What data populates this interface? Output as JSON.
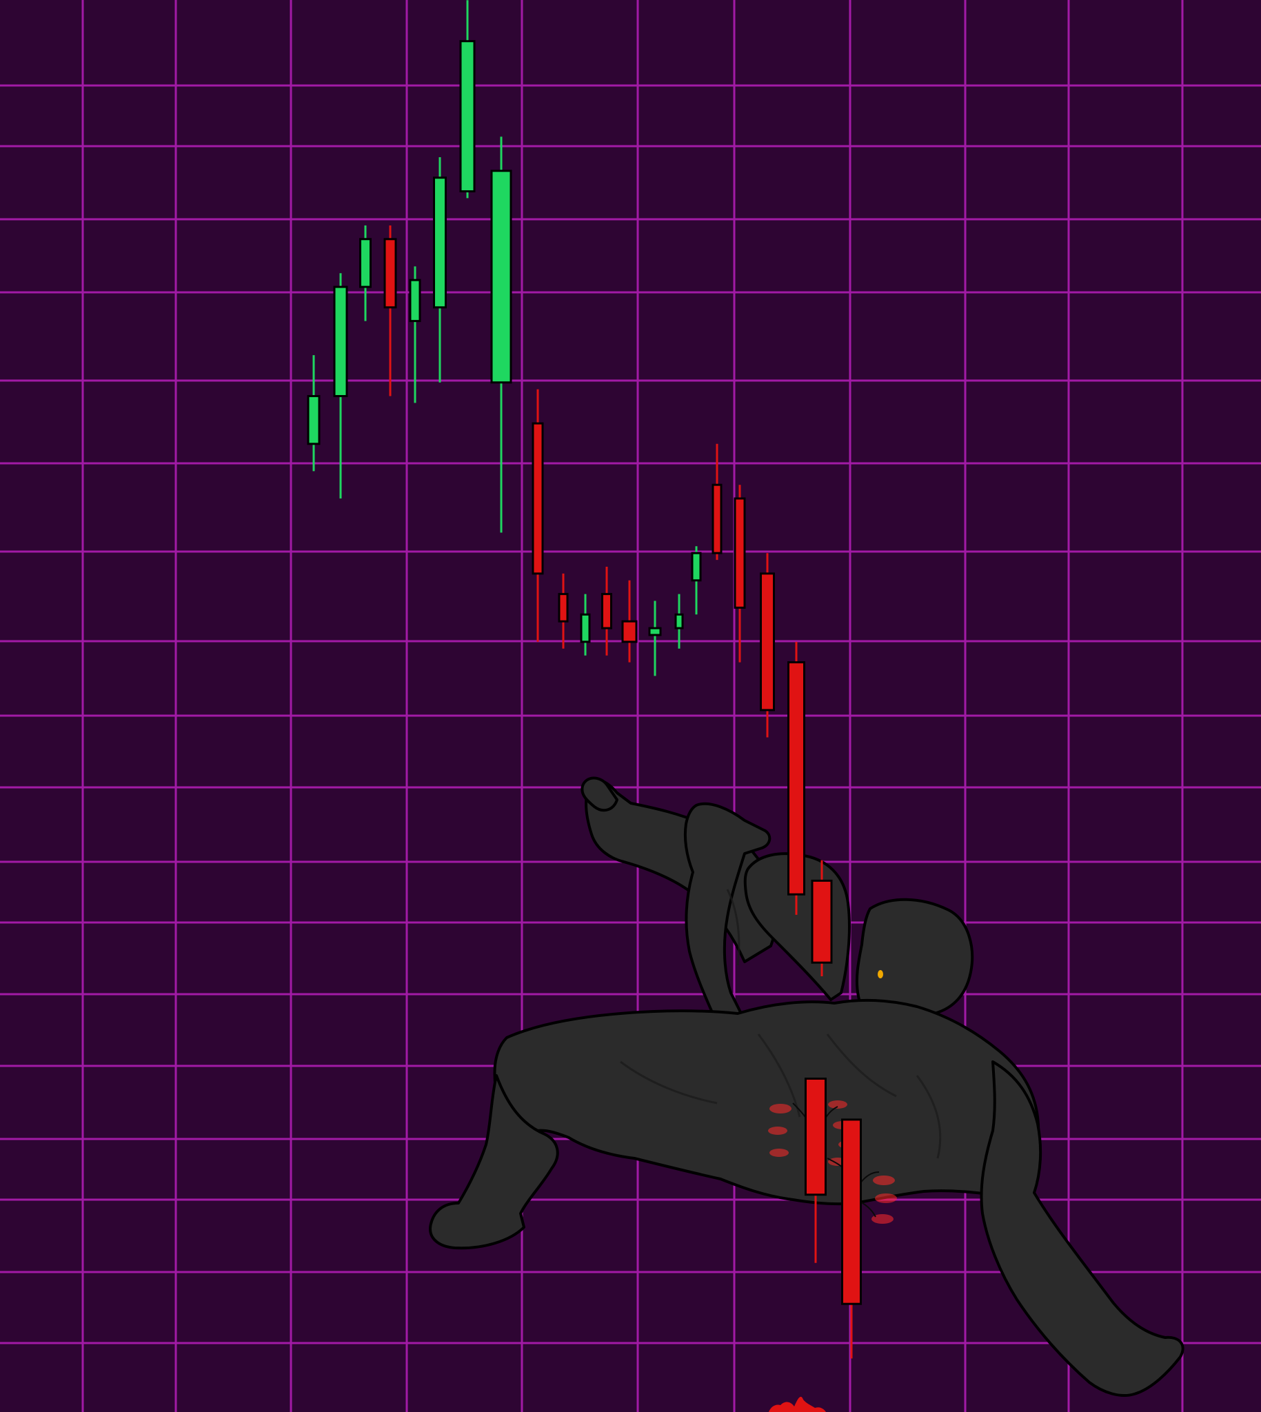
{
  "colors": {
    "background": "#2e0533",
    "grid": "#a21aa6",
    "bullish": "#1fd760",
    "bearish": "#e01313",
    "figure": "#2b2b2b",
    "figure_outline": "#000000",
    "earring": "#f0a800"
  },
  "chart_data": {
    "type": "candlestick",
    "title": "",
    "xlabel": "",
    "ylabel": "",
    "grid": true,
    "legend": "none",
    "tick_labels": "none",
    "candles": [
      {
        "open": 78,
        "close": 85,
        "high": 91,
        "low": 74
      },
      {
        "open": 85,
        "close": 101,
        "high": 103,
        "low": 70
      },
      {
        "open": 101,
        "close": 108,
        "high": 110,
        "low": 96
      },
      {
        "open": 108,
        "close": 98,
        "high": 110,
        "low": 85
      },
      {
        "open": 96,
        "close": 102,
        "high": 104,
        "low": 84
      },
      {
        "open": 98,
        "close": 117,
        "high": 120,
        "low": 87
      },
      {
        "open": 115,
        "close": 137,
        "high": 143,
        "low": 114
      },
      {
        "open": 87,
        "close": 118,
        "high": 123,
        "low": 65
      },
      {
        "open": 81,
        "close": 59,
        "high": 86,
        "low": 49
      },
      {
        "open": 56,
        "close": 52,
        "high": 59,
        "low": 48
      },
      {
        "open": 49,
        "close": 53,
        "high": 56,
        "low": 47
      },
      {
        "open": 56,
        "close": 51,
        "high": 60,
        "low": 47
      },
      {
        "open": 52,
        "close": 49,
        "high": 58,
        "low": 46
      },
      {
        "open": 50,
        "close": 51,
        "high": 55,
        "low": 44
      },
      {
        "open": 51,
        "close": 53,
        "high": 56,
        "low": 48
      },
      {
        "open": 58,
        "close": 62,
        "high": 63,
        "low": 53
      },
      {
        "open": 72,
        "close": 62,
        "high": 78,
        "low": 61
      },
      {
        "open": 70,
        "close": 54,
        "high": 72,
        "low": 46
      },
      {
        "open": 59,
        "close": 39,
        "high": 62,
        "low": 35
      },
      {
        "open": 46,
        "close": 12,
        "high": 49,
        "low": 9
      },
      {
        "open": 14,
        "close": 2,
        "high": 17,
        "low": 0
      },
      {
        "open": -15,
        "close": -32,
        "high": -15,
        "low": -42
      },
      {
        "open": -21,
        "close": -48,
        "high": -21,
        "low": -56
      }
    ],
    "ylim": [
      -60,
      140
    ]
  },
  "figure": {
    "icon": "falling-man-figure"
  }
}
